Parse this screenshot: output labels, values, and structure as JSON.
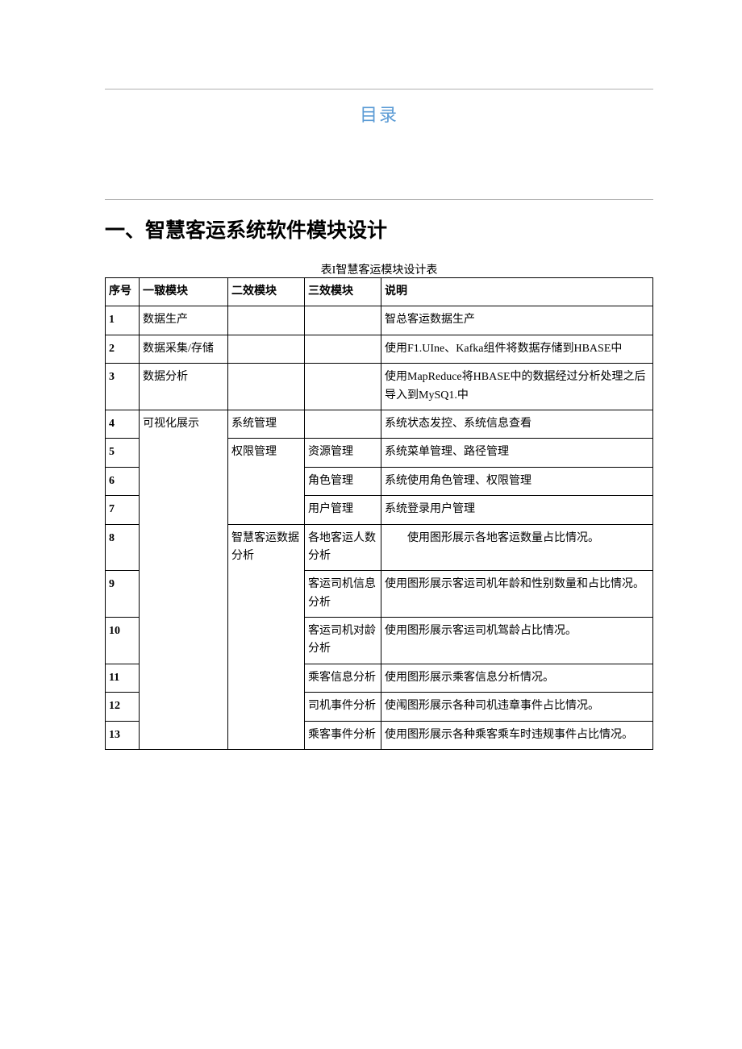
{
  "toc_title": "目录",
  "section_title": "一、智慧客运系统软件模块设计",
  "table_caption": "表I智慧客运模块设计表",
  "headers": {
    "seq": "序号",
    "level1": "一皲模块",
    "level2": "二效模块",
    "level3": "三效模块",
    "desc": "说明"
  },
  "rows": [
    {
      "seq": "1",
      "l1": "数据生产",
      "l2": "",
      "l3": "",
      "desc": "智总客运数据生产"
    },
    {
      "seq": "2",
      "l1": "数据采集/存储",
      "l2": "",
      "l3": "",
      "desc": "使用F1.UIne、Kafka组件将数据存储到HBASE中"
    },
    {
      "seq": "3",
      "l1": "数据分析",
      "l2": "",
      "l3": "",
      "desc": "使用MapReduce将HBASE中的数据经过分析处理之后导入到MySQ1.中"
    },
    {
      "seq": "4",
      "l1": "可视化展示",
      "l2": "系统管理",
      "l3": "",
      "desc": "系统状态发控、系统信息查看"
    },
    {
      "seq": "5",
      "l2": "权限管理",
      "l3": "资源管理",
      "desc": "系统菜单管理、路径管理"
    },
    {
      "seq": "6",
      "l3": "角色管理",
      "desc": "系统使用角色管理、权限管理"
    },
    {
      "seq": "7",
      "l3": "用户管理",
      "desc": "系统登录用户管理"
    },
    {
      "seq": "8",
      "l2": "智慧客运数据分析",
      "l3": "各地客运人数分析",
      "desc": "使用图形展示各地客运数量占比情况。",
      "indent": true
    },
    {
      "seq": "9",
      "l3": "客运司机信息分析",
      "desc": "使用图形展示客运司机年龄和性别数量和占比情况。"
    },
    {
      "seq": "10",
      "l3": "客运司机对龄分析",
      "desc": "使用图形展示客运司机驾龄占比情况。"
    },
    {
      "seq": "11",
      "l3": "乘客信息分析",
      "desc": "使用图形展示乘客信息分析情况。"
    },
    {
      "seq": "12",
      "l3": "司机事件分析",
      "desc": "使闱图形展示各种司机违章事件占比情况。"
    },
    {
      "seq": "13",
      "l3": "乘客事件分析",
      "desc": "使用图形展示各种乘客乘车时违规事件占比情况。"
    }
  ]
}
